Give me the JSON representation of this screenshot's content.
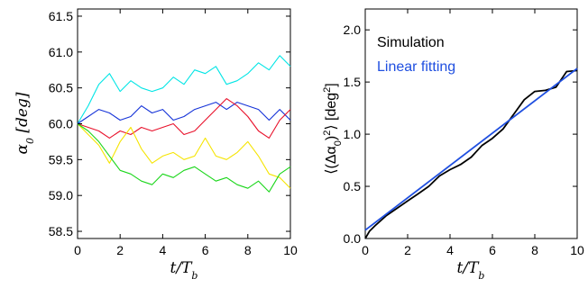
{
  "chart_data": [
    {
      "type": "line",
      "title": "",
      "xlabel": "t/T_b",
      "ylabel": "α_0  [deg]",
      "xlim": [
        0,
        10
      ],
      "ylim": [
        58.4,
        61.6
      ],
      "xticks": [
        "0",
        "2",
        "4",
        "6",
        "8",
        "10"
      ],
      "yticks": [
        "58.5",
        "59.0",
        "59.5",
        "60.0",
        "60.5",
        "61.0",
        "61.5"
      ],
      "grid": false,
      "series": [
        {
          "color": "#00e5e5",
          "x": [
            0,
            0.5,
            1,
            1.5,
            2,
            2.5,
            3,
            3.5,
            4,
            4.5,
            5,
            5.5,
            6,
            6.5,
            7,
            7.5,
            8,
            8.5,
            9,
            9.5,
            10
          ],
          "y": [
            60.0,
            60.25,
            60.55,
            60.7,
            60.45,
            60.6,
            60.5,
            60.45,
            60.5,
            60.65,
            60.55,
            60.75,
            60.7,
            60.8,
            60.55,
            60.6,
            60.7,
            60.85,
            60.75,
            60.95,
            60.8
          ]
        },
        {
          "color": "#1432d8",
          "x": [
            0,
            0.5,
            1,
            1.5,
            2,
            2.5,
            3,
            3.5,
            4,
            4.5,
            5,
            5.5,
            6,
            6.5,
            7,
            7.5,
            8,
            8.5,
            9,
            9.5,
            10
          ],
          "y": [
            60.0,
            60.1,
            60.2,
            60.15,
            60.05,
            60.1,
            60.25,
            60.15,
            60.2,
            60.05,
            60.1,
            60.2,
            60.25,
            60.3,
            60.2,
            60.3,
            60.25,
            60.2,
            60.05,
            60.2,
            60.05
          ]
        },
        {
          "color": "#e8102a",
          "x": [
            0,
            0.5,
            1,
            1.5,
            2,
            2.5,
            3,
            3.5,
            4,
            4.5,
            5,
            5.5,
            6,
            6.5,
            7,
            7.5,
            8,
            8.5,
            9,
            9.5,
            10
          ],
          "y": [
            60.0,
            59.95,
            59.9,
            59.8,
            59.9,
            59.85,
            59.95,
            59.9,
            59.95,
            60.0,
            59.85,
            59.9,
            60.05,
            60.2,
            60.35,
            60.25,
            60.1,
            59.9,
            59.8,
            60.05,
            60.2
          ]
        },
        {
          "color": "#f5e400",
          "x": [
            0,
            0.5,
            1,
            1.5,
            2,
            2.5,
            3,
            3.5,
            4,
            4.5,
            5,
            5.5,
            6,
            6.5,
            7,
            7.5,
            8,
            8.5,
            9,
            9.5,
            10
          ],
          "y": [
            60.0,
            59.85,
            59.7,
            59.45,
            59.75,
            59.95,
            59.65,
            59.45,
            59.55,
            59.6,
            59.5,
            59.55,
            59.8,
            59.55,
            59.5,
            59.6,
            59.75,
            59.55,
            59.3,
            59.25,
            59.1
          ]
        },
        {
          "color": "#1ad61a",
          "x": [
            0,
            0.5,
            1,
            1.5,
            2,
            2.5,
            3,
            3.5,
            4,
            4.5,
            5,
            5.5,
            6,
            6.5,
            7,
            7.5,
            8,
            8.5,
            9,
            9.5,
            10
          ],
          "y": [
            60.0,
            59.9,
            59.75,
            59.55,
            59.35,
            59.3,
            59.2,
            59.15,
            59.3,
            59.25,
            59.35,
            59.4,
            59.3,
            59.2,
            59.25,
            59.15,
            59.1,
            59.2,
            59.05,
            59.3,
            59.4
          ]
        }
      ]
    },
    {
      "type": "line",
      "title": "",
      "xlabel": "t/T_b",
      "ylabel": "⟨(Δα_0)^2⟩  [deg^2]",
      "xlim": [
        0,
        10
      ],
      "ylim": [
        0,
        2.2
      ],
      "xticks": [
        "0",
        "2",
        "4",
        "6",
        "8",
        "10"
      ],
      "yticks": [
        "0.0",
        "0.5",
        "1.0",
        "1.5",
        "2.0"
      ],
      "grid": false,
      "legend_position": "top-left",
      "series": [
        {
          "name": "Simulation",
          "color": "#000000",
          "x": [
            0,
            0.2,
            0.5,
            1,
            1.5,
            2,
            2.5,
            3,
            3.5,
            4,
            4.5,
            5,
            5.5,
            6,
            6.5,
            7,
            7.5,
            8,
            8.5,
            9,
            9.5,
            10
          ],
          "y": [
            0.0,
            0.07,
            0.13,
            0.22,
            0.29,
            0.36,
            0.43,
            0.5,
            0.6,
            0.66,
            0.71,
            0.78,
            0.89,
            0.96,
            1.05,
            1.19,
            1.33,
            1.41,
            1.42,
            1.45,
            1.6,
            1.61
          ]
        },
        {
          "name": "Linear fitting",
          "color": "#1f4fe0",
          "x": [
            0,
            10
          ],
          "y": [
            0.08,
            1.63
          ]
        }
      ]
    }
  ]
}
